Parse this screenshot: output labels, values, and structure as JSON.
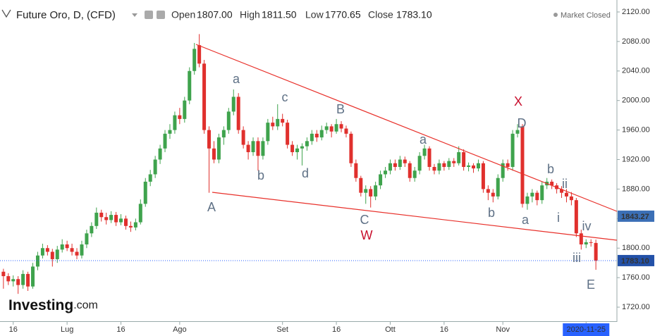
{
  "chart_data": {
    "type": "candlestick",
    "title": "Future Oro, D, (CFD)",
    "header_fields": [
      {
        "label": "Open",
        "value": "1807.00"
      },
      {
        "label": "High",
        "value": "1811.50"
      },
      {
        "label": "Low",
        "value": "1770.65"
      },
      {
        "label": "Close",
        "value": "1783.10"
      }
    ],
    "status": "Market Closed",
    "logo": {
      "name": "Investing",
      "suffix": ".com"
    },
    "up_color": "#3fa34d",
    "down_color": "#e0302d",
    "ylim": [
      1700,
      2130
    ],
    "yticks": [
      {
        "value": 1720,
        "label": "1720.00"
      },
      {
        "value": 1760,
        "label": "1760.00"
      },
      {
        "value": 1800,
        "label": "1800.00"
      },
      {
        "value": 1840,
        "label": "1840.00"
      },
      {
        "value": 1880,
        "label": "1880.00"
      },
      {
        "value": 1920,
        "label": "1920.00"
      },
      {
        "value": 1960,
        "label": "1960.00"
      },
      {
        "value": 2000,
        "label": "2000.00"
      },
      {
        "value": 2040,
        "label": "2040.00"
      },
      {
        "value": 2080,
        "label": "2080.00"
      },
      {
        "value": 2120,
        "label": "2120.00"
      }
    ],
    "xlim": [
      -0.7,
      125.3
    ],
    "xticks": [
      {
        "value": 2,
        "label": "16"
      },
      {
        "value": 13,
        "label": "Lug"
      },
      {
        "value": 24,
        "label": "16"
      },
      {
        "value": 36,
        "label": "Ago"
      },
      {
        "value": 57,
        "label": "Set"
      },
      {
        "value": 68,
        "label": "16"
      },
      {
        "value": 79,
        "label": "Ott"
      },
      {
        "value": 90,
        "label": "16"
      },
      {
        "value": 102,
        "label": "Nov"
      },
      {
        "value": 119,
        "label": "2020-11-25"
      }
    ],
    "grid": false,
    "price_labels": [
      {
        "value": 1843.27,
        "label": "1843.27"
      },
      {
        "value": 1783.1,
        "label": "1783.10"
      }
    ],
    "annotations": [
      "A",
      "a",
      "b",
      "c",
      "d",
      "B",
      "C",
      "W",
      "a",
      "b",
      "X",
      "D",
      "a",
      "b",
      "ii",
      "i",
      "iv",
      "iii",
      "E"
    ],
    "ohlc": [
      [
        1768,
        1772,
        1745,
        1762
      ],
      [
        1762,
        1766,
        1750,
        1755
      ],
      [
        1755,
        1763,
        1748,
        1758
      ],
      [
        1758,
        1762,
        1738,
        1750
      ],
      [
        1750,
        1770,
        1745,
        1765
      ],
      [
        1765,
        1768,
        1742,
        1748
      ],
      [
        1748,
        1780,
        1745,
        1775
      ],
      [
        1775,
        1795,
        1770,
        1790
      ],
      [
        1790,
        1806,
        1786,
        1800
      ],
      [
        1800,
        1804,
        1790,
        1795
      ],
      [
        1795,
        1799,
        1775,
        1785
      ],
      [
        1785,
        1803,
        1780,
        1798
      ],
      [
        1798,
        1812,
        1794,
        1805
      ],
      [
        1805,
        1810,
        1796,
        1800
      ],
      [
        1800,
        1806,
        1790,
        1795
      ],
      [
        1795,
        1800,
        1785,
        1790
      ],
      [
        1790,
        1810,
        1786,
        1805
      ],
      [
        1805,
        1825,
        1800,
        1820
      ],
      [
        1820,
        1835,
        1815,
        1830
      ],
      [
        1830,
        1855,
        1826,
        1848
      ],
      [
        1848,
        1852,
        1836,
        1842
      ],
      [
        1842,
        1848,
        1832,
        1838
      ],
      [
        1838,
        1850,
        1834,
        1845
      ],
      [
        1845,
        1849,
        1830,
        1835
      ],
      [
        1835,
        1846,
        1831,
        1840
      ],
      [
        1840,
        1844,
        1825,
        1830
      ],
      [
        1830,
        1836,
        1822,
        1828
      ],
      [
        1828,
        1840,
        1824,
        1835
      ],
      [
        1835,
        1866,
        1832,
        1860
      ],
      [
        1860,
        1895,
        1856,
        1890
      ],
      [
        1890,
        1906,
        1884,
        1900
      ],
      [
        1900,
        1925,
        1895,
        1920
      ],
      [
        1920,
        1940,
        1914,
        1935
      ],
      [
        1935,
        1960,
        1930,
        1955
      ],
      [
        1955,
        1968,
        1948,
        1960
      ],
      [
        1960,
        1985,
        1955,
        1980
      ],
      [
        1980,
        1990,
        1968,
        1975
      ],
      [
        1975,
        2005,
        1970,
        2000
      ],
      [
        2000,
        2045,
        1995,
        2040
      ],
      [
        2040,
        2078,
        2035,
        2070
      ],
      [
        2075,
        2090,
        2045,
        2050
      ],
      [
        2050,
        2055,
        1955,
        1960
      ],
      [
        1960,
        1965,
        1875,
        1935
      ],
      [
        1935,
        1945,
        1915,
        1920
      ],
      [
        1920,
        1955,
        1915,
        1950
      ],
      [
        1950,
        1965,
        1940,
        1960
      ],
      [
        1960,
        1990,
        1955,
        1985
      ],
      [
        1985,
        2015,
        1980,
        2005
      ],
      [
        2005,
        2010,
        1955,
        1960
      ],
      [
        1960,
        1965,
        1935,
        1940
      ],
      [
        1940,
        1945,
        1920,
        1930
      ],
      [
        1930,
        1950,
        1925,
        1945
      ],
      [
        1945,
        1950,
        1905,
        1925
      ],
      [
        1925,
        1950,
        1920,
        1945
      ],
      [
        1945,
        1975,
        1940,
        1970
      ],
      [
        1970,
        1978,
        1960,
        1965
      ],
      [
        1965,
        1995,
        1960,
        1975
      ],
      [
        1975,
        1982,
        1965,
        1970
      ],
      [
        1970,
        1974,
        1935,
        1940
      ],
      [
        1940,
        1945,
        1925,
        1930
      ],
      [
        1930,
        1940,
        1920,
        1935
      ],
      [
        1935,
        1942,
        1912,
        1938
      ],
      [
        1938,
        1950,
        1932,
        1945
      ],
      [
        1945,
        1960,
        1940,
        1955
      ],
      [
        1955,
        1960,
        1944,
        1950
      ],
      [
        1950,
        1966,
        1946,
        1960
      ],
      [
        1960,
        1970,
        1955,
        1965
      ],
      [
        1965,
        1968,
        1950,
        1958
      ],
      [
        1958,
        1975,
        1955,
        1968
      ],
      [
        1968,
        1972,
        1957,
        1962
      ],
      [
        1962,
        1966,
        1950,
        1955
      ],
      [
        1955,
        1958,
        1910,
        1915
      ],
      [
        1915,
        1920,
        1890,
        1895
      ],
      [
        1895,
        1898,
        1870,
        1875
      ],
      [
        1875,
        1885,
        1860,
        1880
      ],
      [
        1880,
        1884,
        1855,
        1870
      ],
      [
        1870,
        1890,
        1865,
        1885
      ],
      [
        1885,
        1905,
        1880,
        1900
      ],
      [
        1900,
        1910,
        1895,
        1905
      ],
      [
        1905,
        1920,
        1900,
        1915
      ],
      [
        1915,
        1920,
        1905,
        1910
      ],
      [
        1910,
        1925,
        1906,
        1920
      ],
      [
        1920,
        1924,
        1910,
        1915
      ],
      [
        1915,
        1918,
        1890,
        1895
      ],
      [
        1895,
        1910,
        1890,
        1905
      ],
      [
        1905,
        1930,
        1900,
        1925
      ],
      [
        1925,
        1940,
        1920,
        1935
      ],
      [
        1935,
        1938,
        1905,
        1910
      ],
      [
        1910,
        1914,
        1900,
        1905
      ],
      [
        1905,
        1920,
        1900,
        1915
      ],
      [
        1915,
        1918,
        1905,
        1910
      ],
      [
        1910,
        1922,
        1906,
        1918
      ],
      [
        1918,
        1922,
        1910,
        1915
      ],
      [
        1915,
        1938,
        1912,
        1930
      ],
      [
        1930,
        1934,
        1905,
        1910
      ],
      [
        1910,
        1916,
        1904,
        1912
      ],
      [
        1912,
        1915,
        1902,
        1908
      ],
      [
        1908,
        1920,
        1904,
        1915
      ],
      [
        1915,
        1918,
        1875,
        1880
      ],
      [
        1880,
        1885,
        1865,
        1875
      ],
      [
        1875,
        1880,
        1862,
        1870
      ],
      [
        1870,
        1900,
        1866,
        1895
      ],
      [
        1895,
        1920,
        1890,
        1915
      ],
      [
        1915,
        1920,
        1905,
        1910
      ],
      [
        1910,
        1960,
        1905,
        1955
      ],
      [
        1955,
        1968,
        1950,
        1960
      ],
      [
        1965,
        1968,
        1855,
        1860
      ],
      [
        1860,
        1875,
        1852,
        1870
      ],
      [
        1870,
        1880,
        1862,
        1875
      ],
      [
        1875,
        1878,
        1858,
        1865
      ],
      [
        1865,
        1890,
        1860,
        1885
      ],
      [
        1885,
        1895,
        1880,
        1890
      ],
      [
        1890,
        1893,
        1880,
        1885
      ],
      [
        1885,
        1888,
        1874,
        1880
      ],
      [
        1880,
        1884,
        1868,
        1875
      ],
      [
        1875,
        1880,
        1862,
        1870
      ],
      [
        1870,
        1876,
        1858,
        1865
      ],
      [
        1865,
        1868,
        1815,
        1820
      ],
      [
        1820,
        1825,
        1798,
        1805
      ],
      [
        1805,
        1812,
        1800,
        1808
      ],
      [
        1808,
        1812,
        1802,
        1807
      ],
      [
        1807,
        1811.5,
        1770.65,
        1783.1
      ]
    ]
  }
}
